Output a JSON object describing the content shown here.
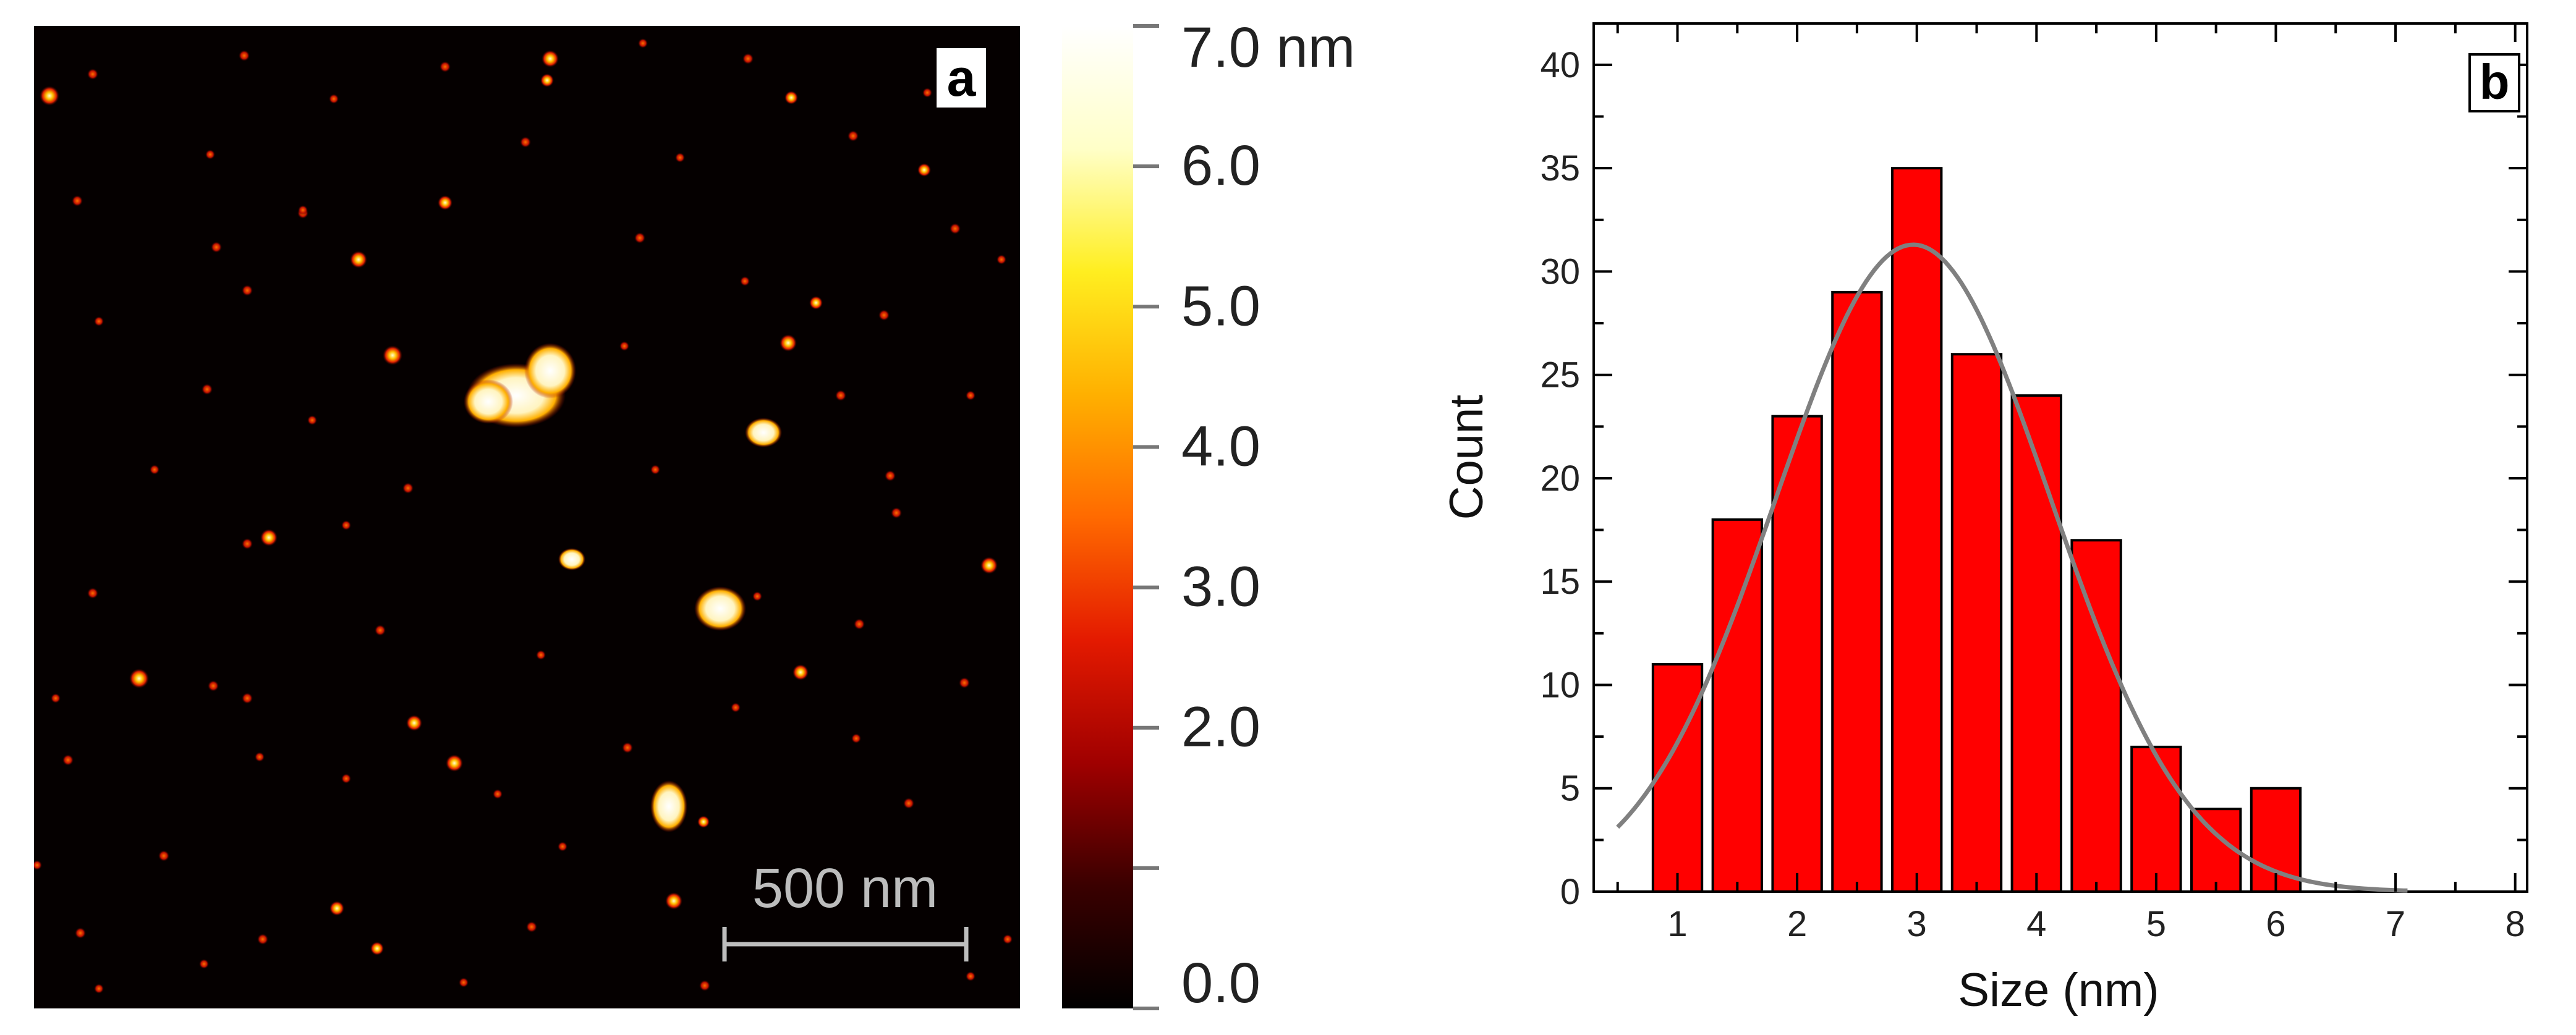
{
  "panel_a": {
    "label": "a",
    "image_type": "AFM height image",
    "scale_bar_label": "500 nm",
    "colorbar": {
      "unit": "nm",
      "tick_labels": [
        "7.0 nm",
        "6.0",
        "5.0",
        "4.0",
        "3.0",
        "2.0",
        "0.0"
      ],
      "tick_values": [
        7.0,
        6.0,
        5.0,
        4.0,
        3.0,
        2.0,
        0.0
      ],
      "range": [
        0.0,
        7.0
      ],
      "colors": [
        "#000000",
        "#3a0000",
        "#a00000",
        "#e41a00",
        "#ff6a00",
        "#ffb000",
        "#ffee20",
        "#ffffc8",
        "#ffffff"
      ]
    }
  },
  "chart_data": {
    "type": "bar",
    "panel_label": "b",
    "title": "",
    "xlabel": "Size (nm)",
    "ylabel": "Count",
    "xlim": [
      0.3,
      8.1
    ],
    "ylim": [
      0,
      42
    ],
    "xticks": [
      1,
      2,
      3,
      4,
      5,
      6,
      7,
      8
    ],
    "yticks": [
      0,
      5,
      10,
      15,
      20,
      25,
      30,
      35,
      40
    ],
    "bin_width": 0.5,
    "bin_centers": [
      1.0,
      1.5,
      2.0,
      2.5,
      3.0,
      3.5,
      4.0,
      4.5,
      5.0,
      5.5,
      6.0
    ],
    "values": [
      11,
      18,
      23,
      29,
      35,
      26,
      24,
      17,
      7,
      4,
      5
    ],
    "bar_color": "#ff0000",
    "fit": {
      "type": "gaussian",
      "center": 2.97,
      "amplitude": 31.3,
      "sigma": 1.15,
      "x_range": [
        0.5,
        7.1
      ],
      "color": "#808080"
    }
  }
}
